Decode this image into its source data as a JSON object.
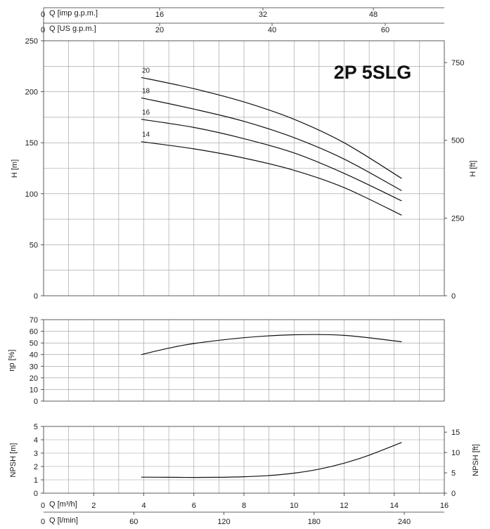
{
  "chart_data": {
    "type": "line",
    "title": "2P 5SLG",
    "flow_axes": {
      "imp_gpm": {
        "label": "Q [imp g.p.m.]",
        "zero": "0",
        "ticks": [
          16,
          32,
          48
        ]
      },
      "us_gpm": {
        "label": "Q [US g.p.m.]",
        "zero": "0",
        "ticks": [
          20,
          40,
          60
        ]
      },
      "m3h": {
        "label": "Q [m³/h]",
        "zero": "0",
        "ticks": [
          2,
          4,
          6,
          8,
          10,
          12,
          14,
          16
        ],
        "range": [
          0,
          16
        ]
      },
      "lmin": {
        "label": "Q [l/min]",
        "zero": "0",
        "ticks": [
          60,
          120,
          180,
          240
        ]
      }
    },
    "head": {
      "ylabel": "H [m]",
      "ylabel_right": "H [ft]",
      "ylim": [
        0,
        250
      ],
      "yticks": [
        0,
        50,
        100,
        150,
        200,
        250
      ],
      "yticks_right": [
        0,
        250,
        500,
        750
      ],
      "series": [
        {
          "name": "20",
          "x": [
            3.9,
            6,
            8,
            10,
            12,
            14.3
          ],
          "y": [
            214,
            203,
            190,
            173,
            150,
            115
          ]
        },
        {
          "name": "18",
          "x": [
            3.9,
            6,
            8,
            10,
            12,
            14.3
          ],
          "y": [
            194,
            183,
            171,
            155,
            134,
            103
          ]
        },
        {
          "name": "16",
          "x": [
            3.9,
            6,
            8,
            10,
            12,
            14.3
          ],
          "y": [
            173,
            165,
            154,
            140,
            120,
            93
          ]
        },
        {
          "name": "14",
          "x": [
            3.9,
            6,
            8,
            10,
            12,
            14.3
          ],
          "y": [
            151,
            144,
            135,
            123,
            106,
            79
          ]
        }
      ]
    },
    "efficiency": {
      "ylabel": "ηp [%]",
      "ylim": [
        0,
        70
      ],
      "yticks": [
        0,
        10,
        20,
        30,
        40,
        50,
        60,
        70
      ],
      "series": [
        {
          "x": [
            3.9,
            5,
            6,
            8,
            10,
            12,
            14.3
          ],
          "y": [
            40,
            45.5,
            49.5,
            54.5,
            57,
            56.5,
            51
          ]
        }
      ]
    },
    "npsh": {
      "ylabel": "NPSH [m]",
      "ylabel_right": "NPSH [ft]",
      "ylim": [
        0,
        5
      ],
      "yticks": [
        0,
        1,
        2,
        3,
        4,
        5
      ],
      "yticks_right": [
        0,
        5,
        10,
        15
      ],
      "series": [
        {
          "x": [
            3.9,
            5,
            6,
            7,
            8,
            9,
            10,
            11,
            12,
            13,
            14.3
          ],
          "y": [
            1.2,
            1.19,
            1.18,
            1.19,
            1.23,
            1.32,
            1.5,
            1.8,
            2.25,
            2.85,
            3.8
          ]
        }
      ]
    },
    "grid": true
  }
}
